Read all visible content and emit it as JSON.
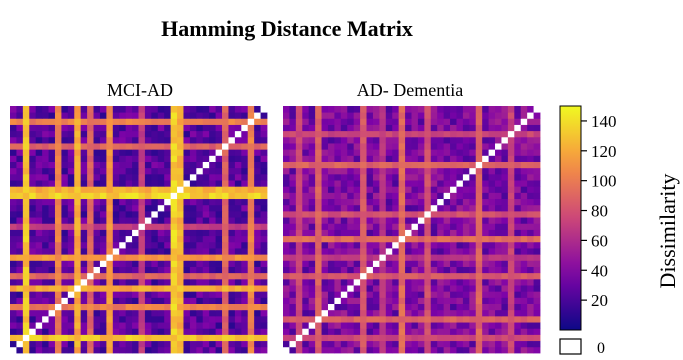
{
  "chart_data": {
    "type": "heatmap",
    "title": "Hamming Distance Matrix",
    "panels": [
      {
        "title": "MCI-AD",
        "size": 40,
        "diagonal_value": 0,
        "base_range": [
          10,
          40
        ],
        "high_rows": [
          {
            "index": 2,
            "value": 140
          },
          {
            "index": 7,
            "value": 110
          },
          {
            "index": 10,
            "value": 130
          },
          {
            "index": 12,
            "value": 95
          },
          {
            "index": 15,
            "value": 120
          },
          {
            "index": 20,
            "value": 75
          },
          {
            "index": 25,
            "value": 145
          },
          {
            "index": 26,
            "value": 135
          },
          {
            "index": 33,
            "value": 95
          },
          {
            "index": 37,
            "value": 110
          }
        ],
        "seed": 11
      },
      {
        "title": "AD- Dementia",
        "size": 40,
        "diagonal_value": 0,
        "base_range": [
          20,
          55
        ],
        "high_rows": [
          {
            "index": 2,
            "value": 80
          },
          {
            "index": 5,
            "value": 95
          },
          {
            "index": 12,
            "value": 90
          },
          {
            "index": 15,
            "value": 70
          },
          {
            "index": 18,
            "value": 100
          },
          {
            "index": 22,
            "value": 85
          },
          {
            "index": 30,
            "value": 95
          },
          {
            "index": 35,
            "value": 80
          }
        ],
        "seed": 23
      }
    ],
    "colorbar": {
      "label": "Dissimilarity",
      "range": [
        0,
        150
      ],
      "ticks": [
        20,
        40,
        60,
        80,
        100,
        120,
        140
      ],
      "colormap": "plasma",
      "zero_label": "0"
    }
  }
}
